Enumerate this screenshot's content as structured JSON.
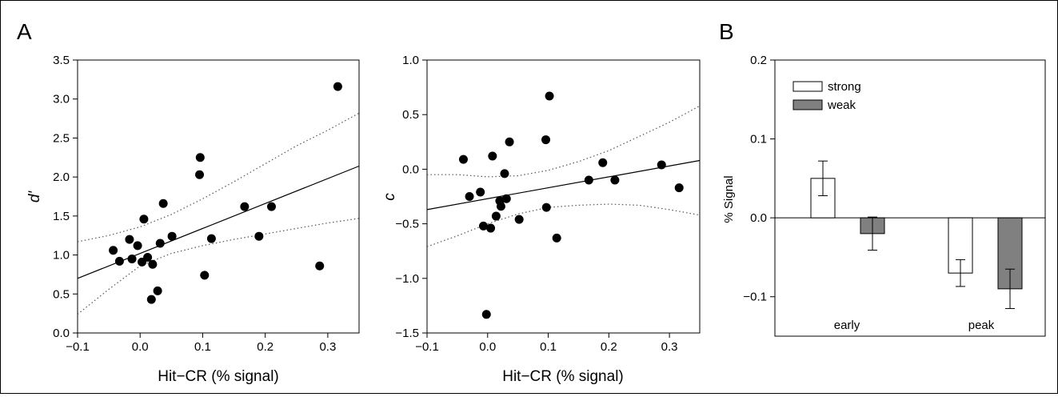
{
  "panels": {
    "a_label": "A",
    "b_label": "B"
  },
  "colors": {
    "points": "#000000",
    "fit_line": "#000000",
    "ci_line": "#555555",
    "bar_strong": "#ffffff",
    "bar_weak": "#808080"
  },
  "chart_data": [
    {
      "type": "scatter",
      "panel": "A-left",
      "xlabel": "Hit−CR (% signal)",
      "ylabel": "d'",
      "xlim": [
        -0.1,
        0.35
      ],
      "ylim": [
        0.0,
        3.5
      ],
      "x_ticks": [
        "−0.1",
        "0.0",
        "0.1",
        "0.2",
        "0.3"
      ],
      "x_tick_values": [
        -0.1,
        0.0,
        0.1,
        0.2,
        0.3
      ],
      "y_ticks": [
        "0.0",
        "0.5",
        "1.0",
        "1.5",
        "2.0",
        "2.5",
        "3.0",
        "3.5"
      ],
      "y_tick_values": [
        0.0,
        0.5,
        1.0,
        1.5,
        2.0,
        2.5,
        3.0,
        3.5
      ],
      "points": [
        [
          -0.043,
          1.06
        ],
        [
          -0.033,
          0.92
        ],
        [
          -0.017,
          1.2
        ],
        [
          -0.013,
          0.95
        ],
        [
          -0.004,
          1.12
        ],
        [
          0.003,
          0.91
        ],
        [
          0.006,
          1.46
        ],
        [
          0.012,
          0.97
        ],
        [
          0.018,
          0.43
        ],
        [
          0.02,
          0.88
        ],
        [
          0.028,
          0.54
        ],
        [
          0.032,
          1.15
        ],
        [
          0.037,
          1.66
        ],
        [
          0.051,
          1.24
        ],
        [
          0.096,
          2.25
        ],
        [
          0.095,
          2.03
        ],
        [
          0.103,
          0.74
        ],
        [
          0.114,
          1.21
        ],
        [
          0.167,
          1.62
        ],
        [
          0.19,
          1.24
        ],
        [
          0.21,
          1.62
        ],
        [
          0.287,
          0.86
        ],
        [
          0.316,
          3.16
        ]
      ],
      "fit_line": [
        [
          -0.1,
          0.7
        ],
        [
          0.35,
          2.14
        ]
      ],
      "ci_upper": [
        [
          -0.1,
          1.17
        ],
        [
          -0.05,
          1.25
        ],
        [
          0.0,
          1.36
        ],
        [
          0.05,
          1.52
        ],
        [
          0.1,
          1.72
        ],
        [
          0.15,
          1.94
        ],
        [
          0.2,
          2.17
        ],
        [
          0.25,
          2.4
        ],
        [
          0.3,
          2.6
        ],
        [
          0.35,
          2.82
        ]
      ],
      "ci_lower": [
        [
          -0.1,
          0.24
        ],
        [
          -0.05,
          0.56
        ],
        [
          0.0,
          0.86
        ],
        [
          0.05,
          1.02
        ],
        [
          0.1,
          1.12
        ],
        [
          0.15,
          1.2
        ],
        [
          0.2,
          1.27
        ],
        [
          0.25,
          1.34
        ],
        [
          0.3,
          1.41
        ],
        [
          0.35,
          1.47
        ]
      ]
    },
    {
      "type": "scatter",
      "panel": "A-right",
      "xlabel": "Hit−CR (% signal)",
      "ylabel": "c",
      "xlim": [
        -0.1,
        0.35
      ],
      "ylim": [
        -1.5,
        1.0
      ],
      "x_ticks": [
        "−0.1",
        "0.0",
        "0.1",
        "0.2",
        "0.3"
      ],
      "x_tick_values": [
        -0.1,
        0.0,
        0.1,
        0.2,
        0.3
      ],
      "y_ticks": [
        "−1.5",
        "−1.0",
        "−0.5",
        "0.0",
        "0.5",
        "1.0"
      ],
      "y_tick_values": [
        -1.5,
        -1.0,
        -0.5,
        0.0,
        0.5,
        1.0
      ],
      "points": [
        [
          -0.04,
          0.09
        ],
        [
          -0.03,
          -0.25
        ],
        [
          -0.012,
          -0.21
        ],
        [
          -0.007,
          -0.52
        ],
        [
          -0.002,
          -1.33
        ],
        [
          0.005,
          -0.54
        ],
        [
          0.008,
          0.12
        ],
        [
          0.014,
          -0.43
        ],
        [
          0.02,
          -0.29
        ],
        [
          0.022,
          -0.34
        ],
        [
          0.028,
          -0.04
        ],
        [
          0.031,
          -0.27
        ],
        [
          0.036,
          0.25
        ],
        [
          0.052,
          -0.46
        ],
        [
          0.096,
          0.27
        ],
        [
          0.097,
          -0.35
        ],
        [
          0.102,
          0.67
        ],
        [
          0.114,
          -0.63
        ],
        [
          0.167,
          -0.1
        ],
        [
          0.19,
          0.06
        ],
        [
          0.21,
          -0.1
        ],
        [
          0.287,
          0.04
        ],
        [
          0.316,
          -0.17
        ]
      ],
      "fit_line": [
        [
          -0.1,
          -0.37
        ],
        [
          0.35,
          0.08
        ]
      ],
      "ci_upper": [
        [
          -0.1,
          -0.05
        ],
        [
          -0.05,
          -0.05
        ],
        [
          0.0,
          -0.07
        ],
        [
          0.05,
          -0.06
        ],
        [
          0.1,
          -0.01
        ],
        [
          0.15,
          0.07
        ],
        [
          0.2,
          0.17
        ],
        [
          0.25,
          0.3
        ],
        [
          0.3,
          0.43
        ],
        [
          0.35,
          0.58
        ]
      ],
      "ci_lower": [
        [
          -0.1,
          -0.71
        ],
        [
          -0.05,
          -0.61
        ],
        [
          0.0,
          -0.5
        ],
        [
          0.05,
          -0.41
        ],
        [
          0.1,
          -0.35
        ],
        [
          0.15,
          -0.33
        ],
        [
          0.2,
          -0.32
        ],
        [
          0.25,
          -0.33
        ],
        [
          0.3,
          -0.37
        ],
        [
          0.35,
          -0.42
        ]
      ]
    },
    {
      "type": "bar",
      "panel": "B",
      "ylabel": "% Signal",
      "ylim": [
        -0.15,
        0.2
      ],
      "y_ticks": [
        "0.2",
        "0.1",
        "0.0",
        "−0.1"
      ],
      "y_tick_values": [
        0.2,
        0.1,
        0.0,
        -0.1
      ],
      "categories": [
        "early",
        "peak"
      ],
      "series": [
        {
          "name": "strong",
          "values": [
            0.05,
            -0.07
          ],
          "errors": [
            0.022,
            0.017
          ]
        },
        {
          "name": "weak",
          "values": [
            -0.02,
            -0.09
          ],
          "errors": [
            0.021,
            0.025
          ]
        }
      ],
      "legend": "top-left"
    }
  ]
}
